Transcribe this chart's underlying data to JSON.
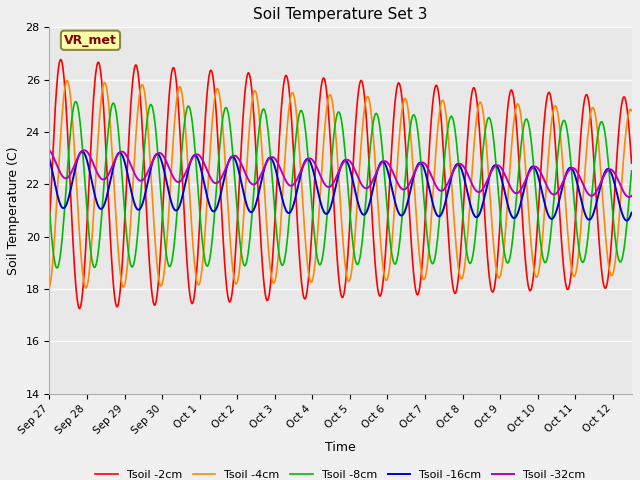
{
  "title": "Soil Temperature Set 3",
  "xlabel": "Time",
  "ylabel": "Soil Temperature (C)",
  "ylim": [
    14,
    28
  ],
  "yticks": [
    14,
    16,
    18,
    20,
    22,
    24,
    26,
    28
  ],
  "annotation": "VR_met",
  "fig_bg": "#f0f0f0",
  "plot_bg": "#e8e8e8",
  "legend": [
    "Tsoil -2cm",
    "Tsoil -4cm",
    "Tsoil -8cm",
    "Tsoil -16cm",
    "Tsoil -32cm"
  ],
  "colors": [
    "#ff0000",
    "#ff8800",
    "#00bb00",
    "#0000cc",
    "#bb00bb"
  ],
  "line_widths": [
    1.2,
    1.2,
    1.2,
    1.4,
    1.4
  ],
  "n_days": 15.5,
  "n_points": 2000,
  "params": {
    "mean": [
      22.0,
      22.0,
      22.0,
      22.2,
      22.8
    ],
    "amp": [
      4.8,
      4.0,
      3.2,
      1.1,
      0.55
    ],
    "phase": [
      0.05,
      0.22,
      0.45,
      0.62,
      0.68
    ],
    "amp_decay": [
      0.018,
      0.015,
      0.012,
      0.008,
      0.004
    ],
    "mean_drift": [
      -0.02,
      -0.02,
      -0.02,
      -0.04,
      -0.05
    ]
  },
  "xtick_labels": [
    "Sep 27",
    "Sep 28",
    "Sep 29",
    "Sep 30",
    "Oct 1",
    "Oct 2",
    "Oct 3",
    "Oct 4",
    "Oct 5",
    "Oct 6",
    "Oct 7",
    "Oct 8",
    "Oct 9",
    "Oct 10",
    "Oct 11",
    "Oct 12"
  ],
  "xtick_positions": [
    0,
    1,
    2,
    3,
    4,
    5,
    6,
    7,
    8,
    9,
    10,
    11,
    12,
    13,
    14,
    15
  ]
}
